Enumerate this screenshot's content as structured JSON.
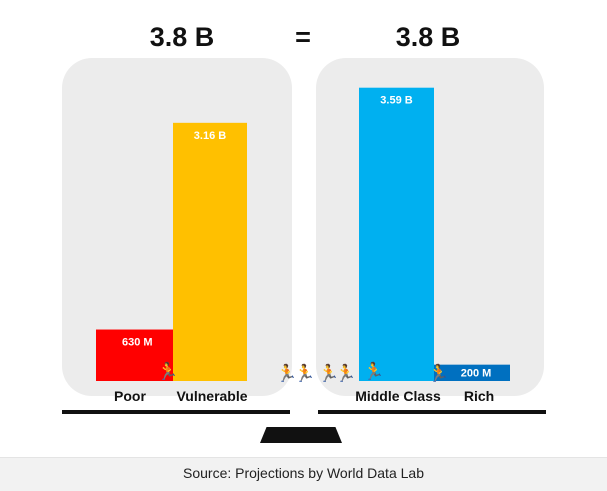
{
  "header": {
    "left_total": "3.8 B",
    "equals": "=",
    "right_total": "3.8 B"
  },
  "footer": {
    "source": "Source: Projections by World Data Lab"
  },
  "icons": {
    "walker": "person-running-icon",
    "walker_glyph": "🏃"
  },
  "colors": {
    "poor": "#ff0000",
    "vulnerable": "#ffc000",
    "middle_class": "#00b0f0",
    "rich": "#0070c0",
    "panel": "#ececec"
  },
  "chart_data": {
    "type": "bar",
    "unit": "people",
    "categories": [
      "Poor",
      "Vulnerable",
      "Middle Class",
      "Rich"
    ],
    "values": [
      0.63,
      3.16,
      3.59,
      0.2
    ],
    "value_scale": "billions",
    "data_labels": [
      "630 M",
      "3.16 B",
      "3.59 B",
      "200 M"
    ],
    "groups": [
      {
        "total_label": "3.8 B",
        "categories": [
          "Poor",
          "Vulnerable"
        ]
      },
      {
        "total_label": "3.8 B",
        "categories": [
          "Middle Class",
          "Rich"
        ]
      }
    ],
    "ylim": [
      0,
      3.8
    ],
    "grid": false,
    "legend": "none"
  }
}
